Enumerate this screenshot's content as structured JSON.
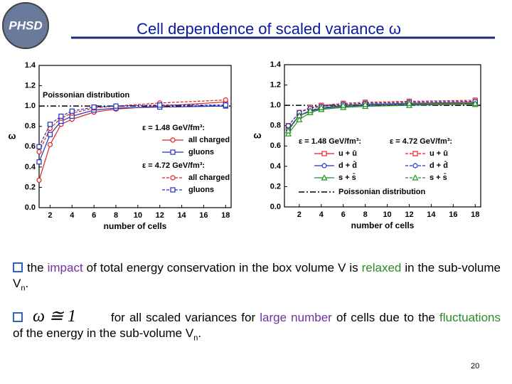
{
  "slide": {
    "logo": "PHSD",
    "title": "Cell dependence of scaled variance ω",
    "bullets": [
      {
        "segments": [
          "the ",
          "impact",
          " of total energy conservation in the box volume V is ",
          "relaxed",
          " in the sub-volume V",
          "n",
          "."
        ]
      },
      {
        "formula": "ω ≅ 1",
        "segments": [
          "for all scaled variances for ",
          "large number",
          " of cells due to the ",
          "fluctuations",
          " of the energy in the sub-volume V",
          "n",
          "."
        ]
      }
    ],
    "page_number": "20"
  },
  "chart_data": [
    {
      "type": "line",
      "x_label": "number of cells",
      "y_label": "ω",
      "xlim": [
        1,
        18.5
      ],
      "ylim": [
        0,
        1.4
      ],
      "xticks": [
        2,
        4,
        6,
        8,
        10,
        12,
        14,
        16,
        18
      ],
      "yticks": [
        {
          "value": 0,
          "label": "0.0"
        },
        0.2,
        0.4,
        0.6,
        0.8,
        {
          "value": 1,
          "label": "1.0"
        },
        1.2,
        1.4
      ],
      "x": [
        1,
        2,
        3,
        4,
        6,
        8,
        12,
        18
      ],
      "reference_line": {
        "value": 1,
        "label": "Poissonian distribution",
        "in_legend": false
      },
      "groups": [
        {
          "title": "ε = 1.48 GeV/fm³:",
          "dashed": false,
          "series": [
            {
              "name": "all charged",
              "color": "#e02020",
              "marker": "circle",
              "values": [
                0.27,
                0.62,
                0.82,
                0.87,
                0.94,
                0.97,
                1.0,
                1.04
              ]
            },
            {
              "name": "gluons",
              "color": "#2030c0",
              "marker": "square",
              "values": [
                0.45,
                0.72,
                0.85,
                0.9,
                0.96,
                0.98,
                0.99,
                1.0
              ]
            }
          ]
        },
        {
          "title": "ε = 4.72 GeV/fm³:",
          "dashed": true,
          "series": [
            {
              "name": "all charged",
              "color": "#e02020",
              "marker": "circle",
              "values": [
                0.55,
                0.78,
                0.88,
                0.93,
                0.98,
                1.0,
                1.03,
                1.06
              ]
            },
            {
              "name": "gluons",
              "color": "#2030c0",
              "marker": "square",
              "values": [
                0.6,
                0.82,
                0.9,
                0.95,
                0.99,
                1.0,
                1.01,
                1.01
              ]
            }
          ]
        }
      ]
    },
    {
      "type": "line",
      "x_label": "number of cells",
      "y_label": "ω",
      "xlim": [
        0.65,
        18.5
      ],
      "ylim": [
        0,
        1.4
      ],
      "xticks": [
        2,
        4,
        6,
        8,
        10,
        12,
        14,
        16,
        18
      ],
      "yticks": [
        {
          "value": 0,
          "label": "0.0"
        },
        0.2,
        0.4,
        0.6,
        0.8,
        {
          "value": 1,
          "label": "1.0"
        },
        1.2,
        1.4
      ],
      "x": [
        1,
        2,
        3,
        4,
        6,
        8,
        12,
        18
      ],
      "reference_line": {
        "value": 1,
        "label": "Poissonian distribution",
        "in_legend": true
      },
      "groups": [
        {
          "title": "ε = 1.48 GeV/fm³:",
          "dashed": false,
          "series": [
            {
              "name": "u + ū",
              "color": "#e02020",
              "marker": "square",
              "values": [
                0.77,
                0.9,
                0.95,
                0.97,
                1.0,
                1.01,
                1.02,
                1.03
              ]
            },
            {
              "name": "d + d̄",
              "color": "#2030c0",
              "marker": "circle",
              "values": [
                0.76,
                0.9,
                0.94,
                0.97,
                0.99,
                1.0,
                1.01,
                1.02
              ]
            },
            {
              "name": "s + s̄",
              "color": "#209020",
              "marker": "triangle",
              "values": [
                0.72,
                0.86,
                0.93,
                0.96,
                0.98,
                0.99,
                1.0,
                1.01
              ]
            }
          ]
        },
        {
          "title": "ε = 4.72 GeV/fm³:",
          "dashed": true,
          "series": [
            {
              "name": "u + ū",
              "color": "#e02020",
              "marker": "square",
              "values": [
                0.8,
                0.93,
                0.98,
                1.0,
                1.02,
                1.03,
                1.04,
                1.05
              ]
            },
            {
              "name": "d + d̄",
              "color": "#2030c0",
              "marker": "circle",
              "values": [
                0.8,
                0.93,
                0.97,
                0.99,
                1.01,
                1.02,
                1.03,
                1.04
              ]
            },
            {
              "name": "s + s̄",
              "color": "#209020",
              "marker": "triangle",
              "values": [
                0.75,
                0.9,
                0.95,
                0.98,
                1.0,
                1.01,
                1.02,
                1.02
              ]
            }
          ]
        }
      ]
    }
  ]
}
